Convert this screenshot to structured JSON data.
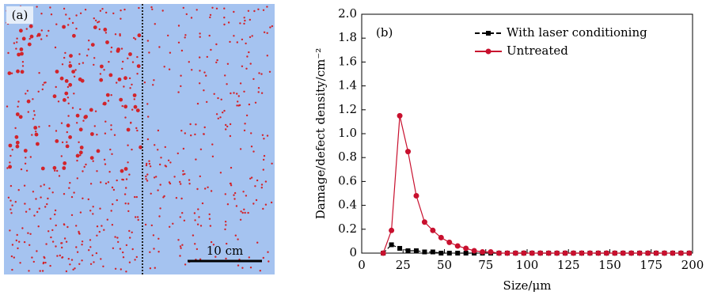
{
  "panels": {
    "a": {
      "label": "(a)",
      "scale_bar": "10 cm"
    }
  },
  "chart_data": {
    "type": "line",
    "annotation": "(b)",
    "x_label": "Size/μm",
    "y_label": "Damage/defect density/cm⁻²",
    "x": [
      13,
      18,
      23,
      28,
      33,
      38,
      43,
      48,
      53,
      58,
      63,
      68,
      73,
      78,
      83,
      88,
      93,
      98,
      103,
      108,
      113,
      118,
      123,
      128,
      133,
      138,
      143,
      148,
      153,
      158,
      163,
      168,
      173,
      178,
      183,
      188,
      193,
      198
    ],
    "xlim": [
      0,
      200
    ],
    "xticks": [
      0,
      25,
      50,
      75,
      100,
      125,
      150,
      175,
      200
    ],
    "ylim": [
      0,
      2
    ],
    "yticks": [
      0,
      0.2,
      0.4,
      0.6,
      0.8,
      {
        "value": 1,
        "label": "1.0"
      },
      1.2,
      1.4,
      1.6,
      1.8,
      {
        "value": 2,
        "label": "2.0"
      }
    ],
    "legend": "upper right",
    "series": [
      {
        "name": "With laser conditioning",
        "color": "#000000",
        "marker": "square",
        "linestyle": "dashed",
        "values": [
          0,
          0.07,
          0.04,
          0.02,
          0.02,
          0.01,
          0.01,
          0,
          0,
          0,
          0,
          0,
          0,
          0,
          0,
          0,
          0,
          0,
          0,
          0,
          0,
          0,
          0,
          0,
          0,
          0,
          0,
          0,
          0,
          0,
          0,
          0,
          0,
          0,
          0,
          0,
          0,
          0
        ]
      },
      {
        "name": "Untreated",
        "color": "#c8102e",
        "marker": "circle",
        "linestyle": "solid",
        "values": [
          0,
          0.19,
          1.15,
          0.85,
          0.48,
          0.26,
          0.19,
          0.13,
          0.09,
          0.06,
          0.04,
          0.02,
          0.01,
          0.01,
          0,
          0,
          0,
          0,
          0,
          0,
          0,
          0,
          0,
          0,
          0,
          0,
          0,
          0,
          0,
          0,
          0,
          0,
          0,
          0,
          0,
          0,
          0,
          0
        ]
      }
    ]
  }
}
